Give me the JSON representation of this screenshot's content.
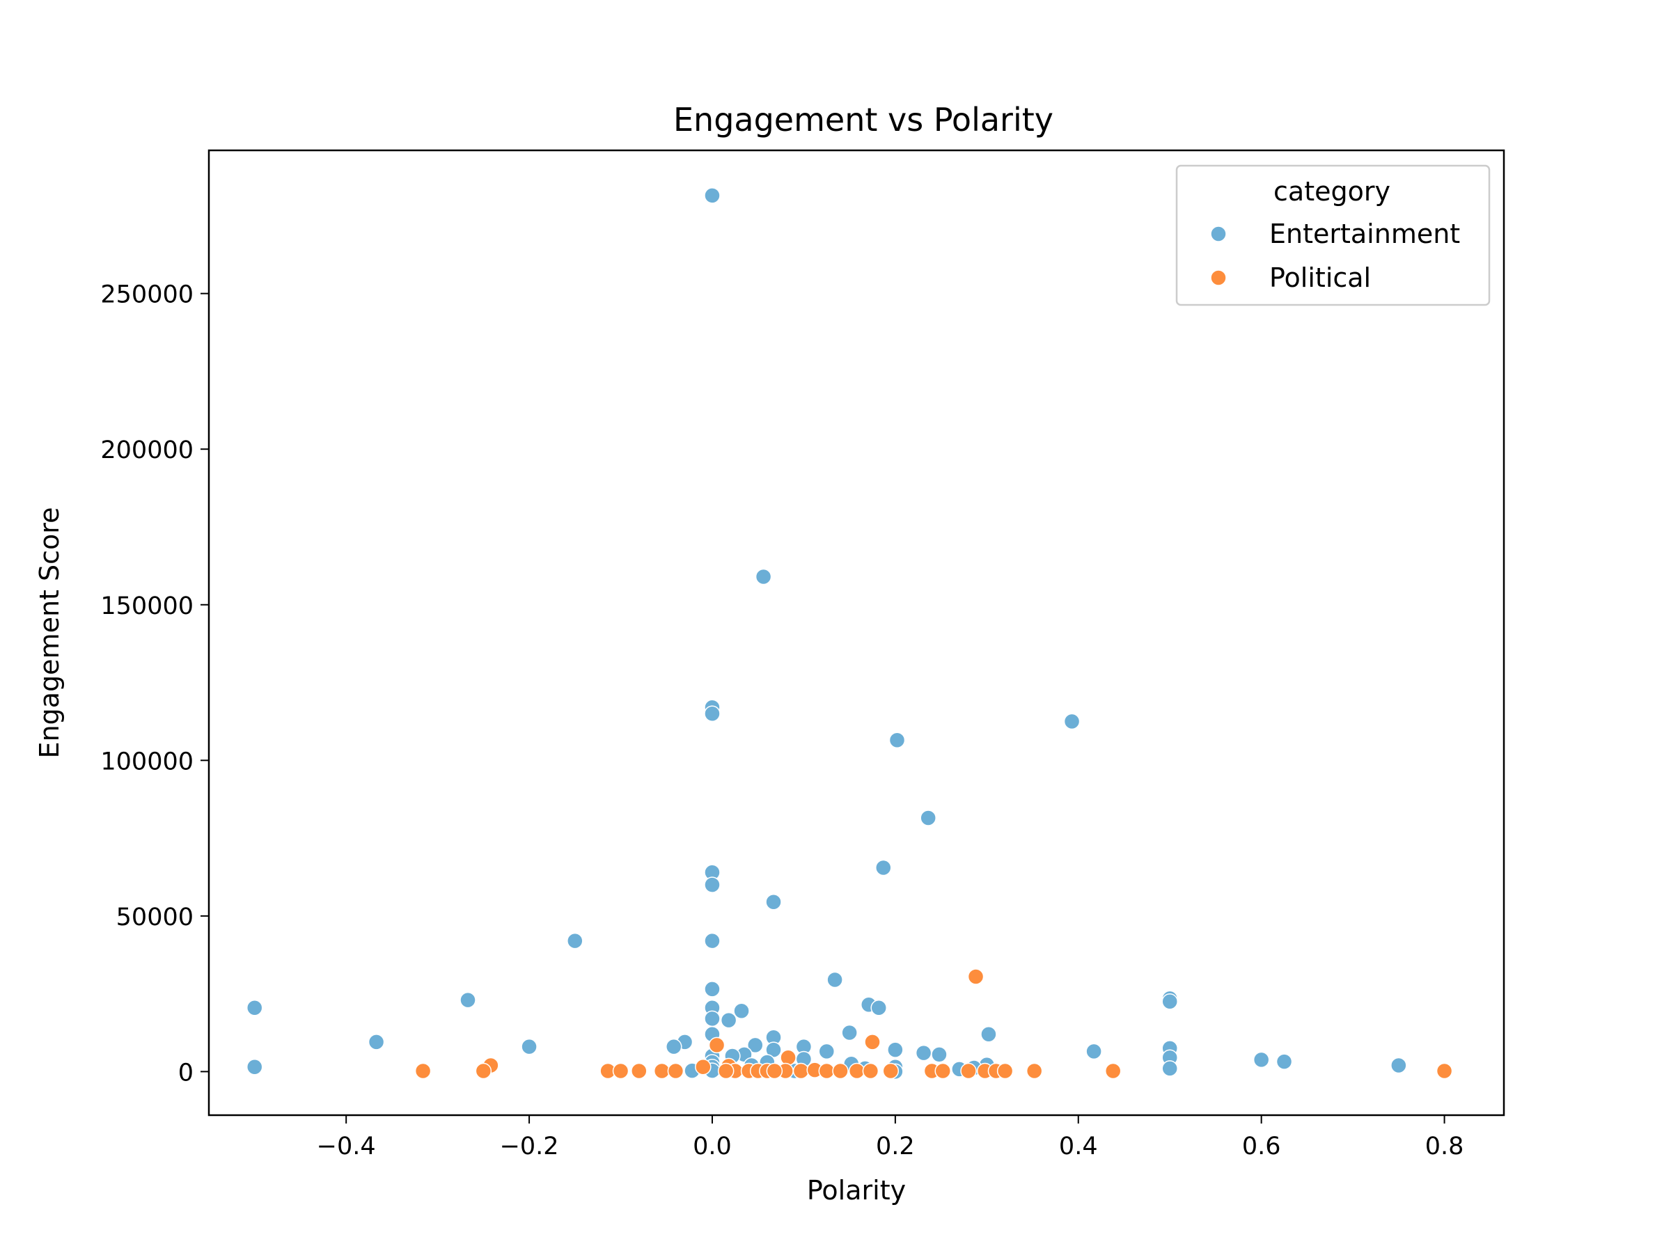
{
  "chart_data": {
    "type": "scatter",
    "title": "Engagement vs Polarity",
    "xlabel": "Polarity",
    "ylabel": "Engagement Score",
    "xlim": [
      -0.55,
      0.865
    ],
    "ylim": [
      -14000,
      296000
    ],
    "xticks": [
      -0.4,
      -0.2,
      0.0,
      0.2,
      0.4,
      0.6,
      0.8
    ],
    "xtick_labels": [
      "−0.4",
      "−0.2",
      "0.0",
      "0.2",
      "0.4",
      "0.6",
      "0.8"
    ],
    "yticks": [
      0,
      50000,
      100000,
      150000,
      200000,
      250000
    ],
    "ytick_labels": [
      "0",
      "50000",
      "100000",
      "150000",
      "200000",
      "250000"
    ],
    "grid": false,
    "legend": {
      "title": "category",
      "placement": "top-right",
      "entries": [
        "Entertainment",
        "Political"
      ]
    },
    "series": [
      {
        "name": "Entertainment",
        "color": "#6baed6",
        "points": [
          [
            0.0,
            281500
          ],
          [
            0.056,
            159000
          ],
          [
            0.0,
            117000
          ],
          [
            0.0,
            115000
          ],
          [
            0.393,
            112500
          ],
          [
            0.202,
            106500
          ],
          [
            0.236,
            81500
          ],
          [
            0.187,
            65500
          ],
          [
            0.0,
            64000
          ],
          [
            0.0,
            60000
          ],
          [
            0.067,
            54500
          ],
          [
            0.0,
            42000
          ],
          [
            -0.15,
            42000
          ],
          [
            0.134,
            29500
          ],
          [
            0.0,
            26500
          ],
          [
            0.5,
            23500
          ],
          [
            0.5,
            22500
          ],
          [
            -0.267,
            23000
          ],
          [
            0.171,
            21500
          ],
          [
            0.182,
            20500
          ],
          [
            -0.5,
            20500
          ],
          [
            0.0,
            20500
          ],
          [
            0.032,
            19500
          ],
          [
            0.0,
            17000
          ],
          [
            0.018,
            16500
          ],
          [
            0.15,
            12500
          ],
          [
            0.302,
            12000
          ],
          [
            0.0,
            12000
          ],
          [
            0.067,
            11000
          ],
          [
            -0.367,
            9500
          ],
          [
            -0.03,
            9500
          ],
          [
            0.047,
            8500
          ],
          [
            -0.042,
            8000
          ],
          [
            -0.2,
            8000
          ],
          [
            0.1,
            8000
          ],
          [
            0.5,
            7500
          ],
          [
            0.067,
            7000
          ],
          [
            0.2,
            7000
          ],
          [
            0.125,
            6500
          ],
          [
            0.417,
            6500
          ],
          [
            0.231,
            6000
          ],
          [
            0.248,
            5500
          ],
          [
            0.035,
            5500
          ],
          [
            0.022,
            5000
          ],
          [
            0.0,
            5000
          ],
          [
            0.5,
            4500
          ],
          [
            0.1,
            4000
          ],
          [
            0.6,
            3800
          ],
          [
            0.625,
            3200
          ],
          [
            0.0,
            3000
          ],
          [
            0.06,
            3000
          ],
          [
            0.152,
            2500
          ],
          [
            0.3,
            2200
          ],
          [
            0.75,
            2000
          ],
          [
            0.043,
            2000
          ],
          [
            0.0,
            1500
          ],
          [
            -0.5,
            1500
          ],
          [
            0.2,
            1500
          ],
          [
            0.5,
            1000
          ],
          [
            0.286,
            1200
          ],
          [
            0.167,
            1000
          ],
          [
            0.27,
            800
          ],
          [
            -0.022,
            300
          ],
          [
            0.0,
            300
          ],
          [
            0.09,
            200
          ],
          [
            0.2,
            0
          ]
        ]
      },
      {
        "name": "Political",
        "color": "#fd8d3c",
        "points": [
          [
            0.288,
            30500
          ],
          [
            0.175,
            9500
          ],
          [
            0.005,
            8500
          ],
          [
            0.083,
            4500
          ],
          [
            -0.242,
            2000
          ],
          [
            0.018,
            1800
          ],
          [
            -0.01,
            1500
          ],
          [
            0.8,
            200
          ],
          [
            -0.316,
            200
          ],
          [
            -0.25,
            200
          ],
          [
            -0.114,
            200
          ],
          [
            -0.1,
            200
          ],
          [
            -0.08,
            200
          ],
          [
            -0.055,
            200
          ],
          [
            -0.04,
            200
          ],
          [
            0.025,
            200
          ],
          [
            0.04,
            200
          ],
          [
            0.05,
            200
          ],
          [
            0.06,
            200
          ],
          [
            0.08,
            200
          ],
          [
            0.097,
            200
          ],
          [
            0.112,
            500
          ],
          [
            0.125,
            200
          ],
          [
            0.14,
            200
          ],
          [
            0.158,
            200
          ],
          [
            0.173,
            200
          ],
          [
            0.195,
            200
          ],
          [
            0.24,
            200
          ],
          [
            0.252,
            200
          ],
          [
            0.28,
            200
          ],
          [
            0.298,
            200
          ],
          [
            0.31,
            200
          ],
          [
            0.32,
            200
          ],
          [
            0.352,
            200
          ],
          [
            0.438,
            200
          ],
          [
            0.015,
            200
          ],
          [
            0.068,
            200
          ]
        ]
      }
    ]
  }
}
